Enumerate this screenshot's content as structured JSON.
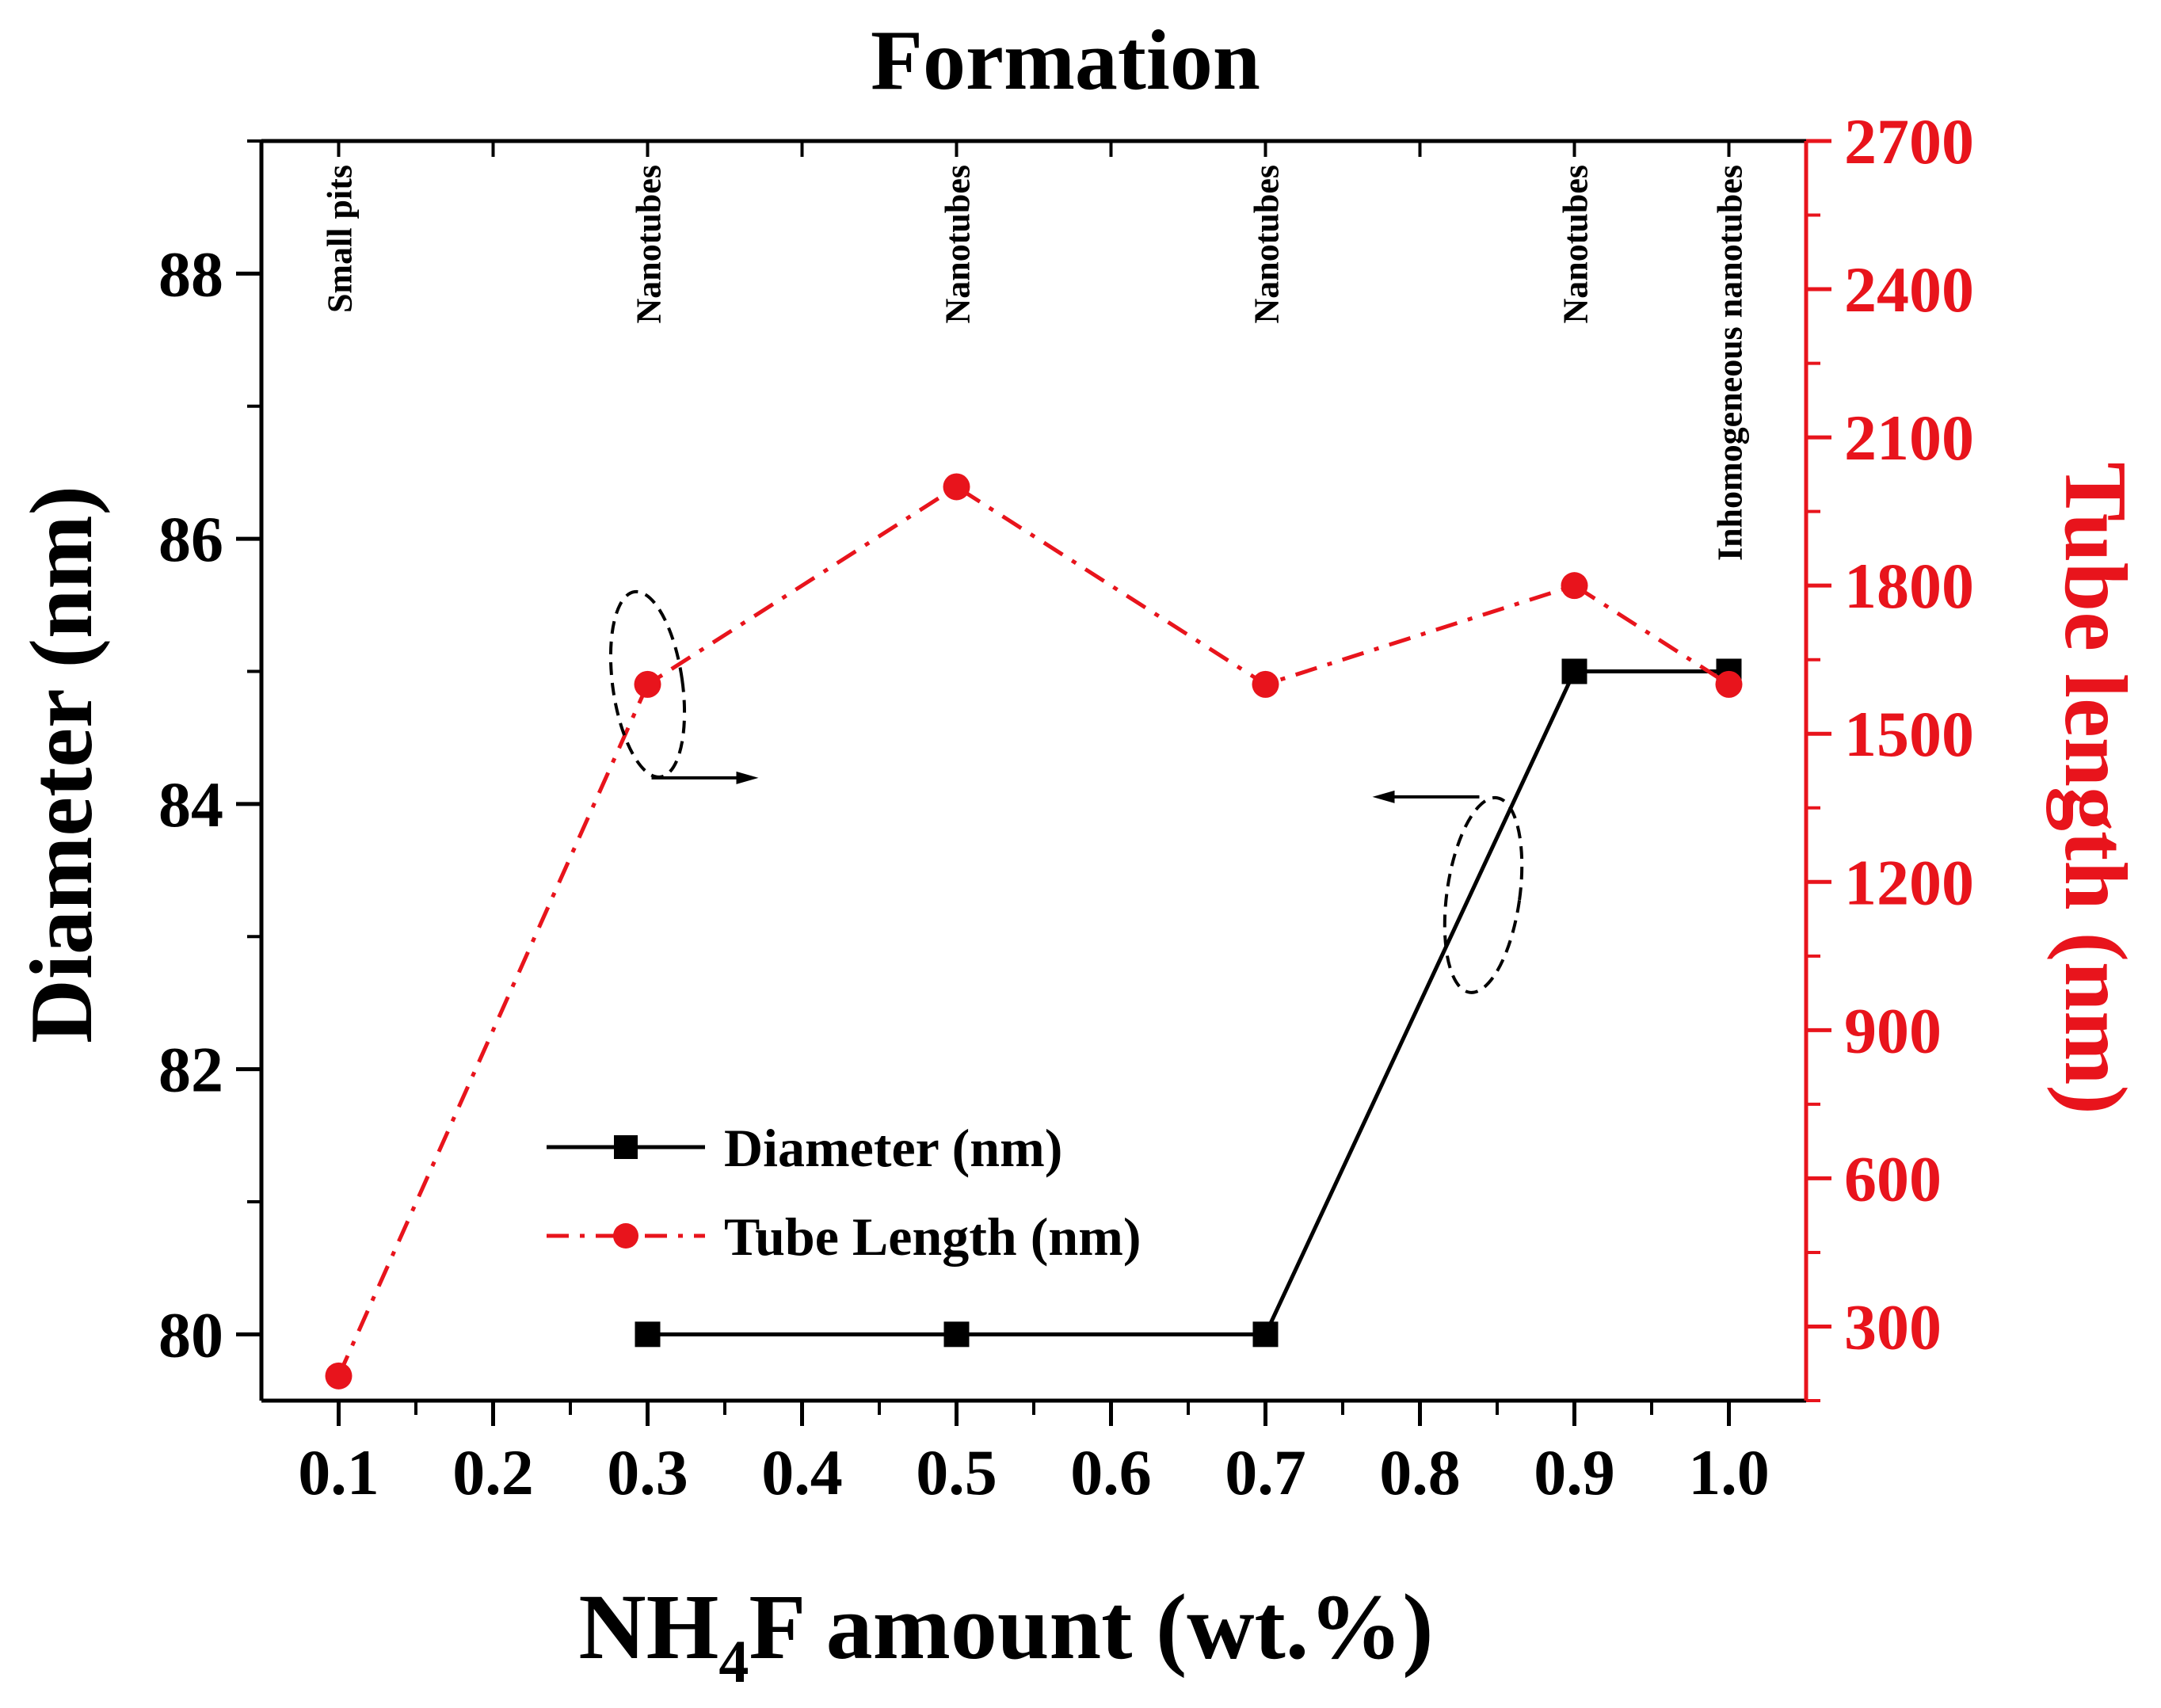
{
  "chart_data": {
    "type": "line",
    "title": "Formation",
    "xlabel": {
      "prefix": "NH",
      "subscript": "4",
      "suffix": "F amount (wt.%)"
    },
    "ylabel_left": "Diameter (nm)",
    "ylabel_right": "Tube length (nm)",
    "xlim": [
      0.05,
      1.05
    ],
    "ylim_left": [
      79.5,
      89
    ],
    "ylim_right": [
      150,
      2700
    ],
    "x_ticks": [
      "0.1",
      "0.2",
      "0.3",
      "0.4",
      "0.5",
      "0.6",
      "0.7",
      "0.8",
      "0.9",
      "1.0"
    ],
    "x_tick_values": [
      0.1,
      0.2,
      0.3,
      0.4,
      0.5,
      0.6,
      0.7,
      0.8,
      0.9,
      1.0
    ],
    "y_left_ticks": [
      80,
      82,
      84,
      86,
      88
    ],
    "y_right_ticks": [
      300,
      600,
      900,
      1200,
      1500,
      1800,
      2100,
      2400,
      2700
    ],
    "series": [
      {
        "name": "Diameter (nm)",
        "axis": "left",
        "color": "#000000",
        "marker": "square",
        "line": "solid",
        "x": [
          0.3,
          0.5,
          0.7,
          0.9,
          1.0
        ],
        "values": [
          80,
          80,
          80,
          85,
          85
        ]
      },
      {
        "name": "Tube Length (nm)",
        "axis": "right",
        "color": "#e8141c",
        "marker": "circle",
        "line": "dashdot",
        "x": [
          0.1,
          0.3,
          0.5,
          0.7,
          0.9,
          1.0
        ],
        "values": [
          200,
          1600,
          2000,
          1600,
          1800,
          1600
        ]
      }
    ],
    "annotations": [
      {
        "x": 0.1,
        "label": "Small pits"
      },
      {
        "x": 0.3,
        "label": "Nanotubes"
      },
      {
        "x": 0.5,
        "label": "Nanotubes"
      },
      {
        "x": 0.7,
        "label": "Nanotubes"
      },
      {
        "x": 0.9,
        "label": "Nanotubes"
      },
      {
        "x": 1.0,
        "label": "Inhomogeneous nanotubes"
      }
    ],
    "legend_position": "bottom-center",
    "grid": false
  },
  "colors": {
    "left_axis": "#000000",
    "right_axis": "#e8141c"
  }
}
